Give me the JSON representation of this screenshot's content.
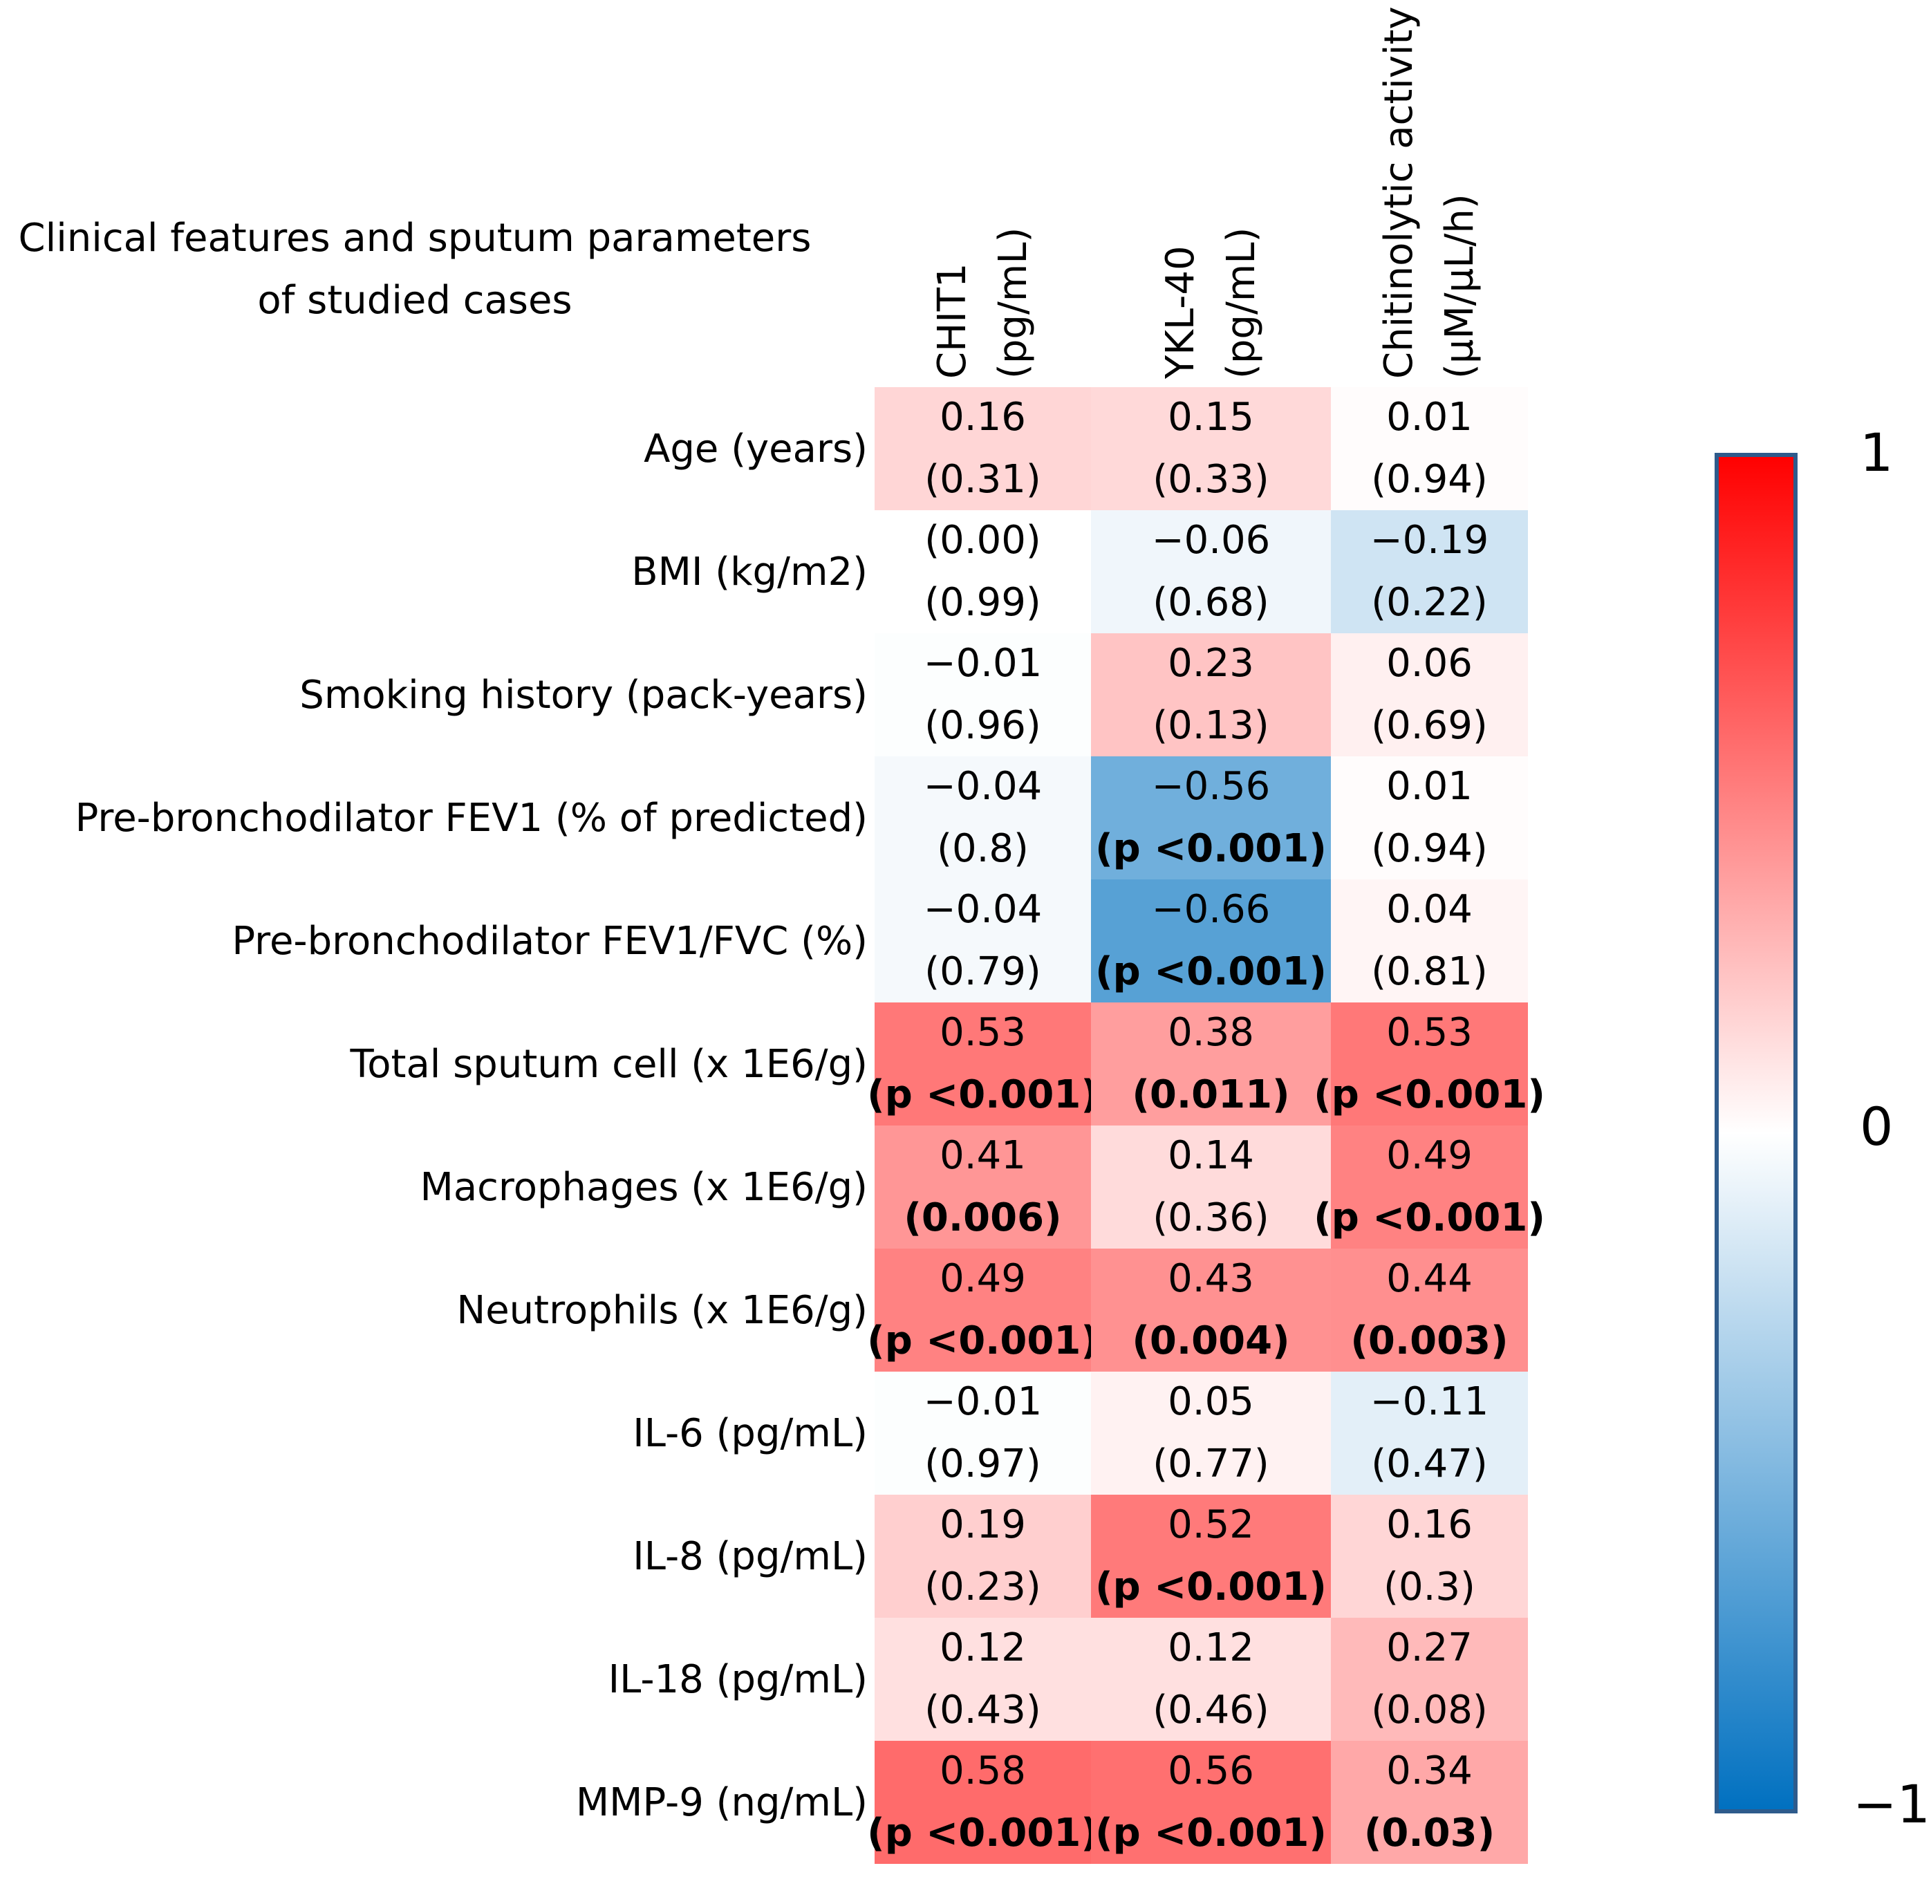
{
  "chart_data": {
    "type": "heatmap",
    "title": [
      "Clinical features and sputum parameters",
      "of studied cases"
    ],
    "columns": [
      [
        "CHIT1",
        "(pg/mL)"
      ],
      [
        "YKL-40",
        "(pg/mL)"
      ],
      [
        "Chitinolytic activity",
        "(µM/µL/h)"
      ]
    ],
    "rows": [
      {
        "label": "Age (years)",
        "cells": [
          {
            "r": 0.16,
            "text": "0.16",
            "p": "(0.31)",
            "sig": false
          },
          {
            "r": 0.15,
            "text": "0.15",
            "p": "(0.33)",
            "sig": false
          },
          {
            "r": 0.01,
            "text": "0.01",
            "p": "(0.94)",
            "sig": false
          }
        ]
      },
      {
        "label": "BMI (kg/m2)",
        "cells": [
          {
            "r": 0.0,
            "text": "(0.00)",
            "p": "(0.99)",
            "sig": false
          },
          {
            "r": -0.06,
            "text": "−0.06",
            "p": "(0.68)",
            "sig": false
          },
          {
            "r": -0.19,
            "text": "−0.19",
            "p": "(0.22)",
            "sig": false
          }
        ]
      },
      {
        "label": "Smoking history (pack-years)",
        "cells": [
          {
            "r": -0.01,
            "text": "−0.01",
            "p": "(0.96)",
            "sig": false
          },
          {
            "r": 0.23,
            "text": "0.23",
            "p": "(0.13)",
            "sig": false
          },
          {
            "r": 0.06,
            "text": "0.06",
            "p": "(0.69)",
            "sig": false
          }
        ]
      },
      {
        "label": "Pre-bronchodilator FEV1 (% of predicted)",
        "cells": [
          {
            "r": -0.04,
            "text": "−0.04",
            "p": "(0.8)",
            "sig": false
          },
          {
            "r": -0.56,
            "text": "−0.56",
            "p": "(p <0.001)",
            "sig": true
          },
          {
            "r": 0.01,
            "text": "0.01",
            "p": "(0.94)",
            "sig": false
          }
        ]
      },
      {
        "label": "Pre-bronchodilator FEV1/FVC (%)",
        "cells": [
          {
            "r": -0.04,
            "text": "−0.04",
            "p": "(0.79)",
            "sig": false
          },
          {
            "r": -0.66,
            "text": "−0.66",
            "p": "(p <0.001)",
            "sig": true
          },
          {
            "r": 0.04,
            "text": "0.04",
            "p": "(0.81)",
            "sig": false
          }
        ]
      },
      {
        "label": "Total sputum cell (x 1E6/g)",
        "cells": [
          {
            "r": 0.53,
            "text": "0.53",
            "p": "(p <0.001)",
            "sig": true
          },
          {
            "r": 0.38,
            "text": "0.38",
            "p": "(0.011)",
            "sig": true
          },
          {
            "r": 0.53,
            "text": "0.53",
            "p": "(p <0.001)",
            "sig": true
          }
        ]
      },
      {
        "label": "Macrophages (x 1E6/g)",
        "cells": [
          {
            "r": 0.41,
            "text": "0.41",
            "p": "(0.006)",
            "sig": true
          },
          {
            "r": 0.14,
            "text": "0.14",
            "p": "(0.36)",
            "sig": false
          },
          {
            "r": 0.49,
            "text": "0.49",
            "p": "(p <0.001)",
            "sig": true
          }
        ]
      },
      {
        "label": "Neutrophils (x 1E6/g)",
        "cells": [
          {
            "r": 0.49,
            "text": "0.49",
            "p": "(p <0.001)",
            "sig": true
          },
          {
            "r": 0.43,
            "text": "0.43",
            "p": "(0.004)",
            "sig": true
          },
          {
            "r": 0.44,
            "text": "0.44",
            "p": "(0.003)",
            "sig": true
          }
        ]
      },
      {
        "label": "IL-6 (pg/mL)",
        "cells": [
          {
            "r": -0.01,
            "text": "−0.01",
            "p": "(0.97)",
            "sig": false
          },
          {
            "r": 0.05,
            "text": "0.05",
            "p": "(0.77)",
            "sig": false
          },
          {
            "r": -0.11,
            "text": "−0.11",
            "p": "(0.47)",
            "sig": false
          }
        ]
      },
      {
        "label": "IL-8 (pg/mL)",
        "cells": [
          {
            "r": 0.19,
            "text": "0.19",
            "p": "(0.23)",
            "sig": false
          },
          {
            "r": 0.52,
            "text": "0.52",
            "p": "(p <0.001)",
            "sig": true
          },
          {
            "r": 0.16,
            "text": "0.16",
            "p": "(0.3)",
            "sig": false
          }
        ]
      },
      {
        "label": "IL-18 (pg/mL)",
        "cells": [
          {
            "r": 0.12,
            "text": "0.12",
            "p": "(0.43)",
            "sig": false
          },
          {
            "r": 0.12,
            "text": "0.12",
            "p": "(0.46)",
            "sig": false
          },
          {
            "r": 0.27,
            "text": "0.27",
            "p": "(0.08)",
            "sig": false
          }
        ]
      },
      {
        "label": "MMP-9 (ng/mL)",
        "cells": [
          {
            "r": 0.58,
            "text": "0.58",
            "p": "(p <0.001)",
            "sig": true
          },
          {
            "r": 0.56,
            "text": "0.56",
            "p": "(p <0.001)",
            "sig": true
          },
          {
            "r": 0.34,
            "text": "0.34",
            "p": "(0.03)",
            "sig": true
          }
        ]
      }
    ],
    "colorbar": {
      "range": [
        -1,
        1
      ],
      "tick_labels": [
        "1",
        "0",
        "−1"
      ],
      "colors": {
        "positive": "#ff0000",
        "zero": "#ffffff",
        "negative": "#0070c0"
      }
    }
  }
}
